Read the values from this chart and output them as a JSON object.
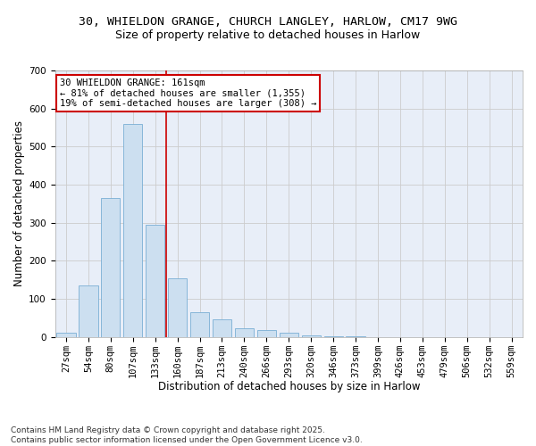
{
  "title_line1": "30, WHIELDON GRANGE, CHURCH LANGLEY, HARLOW, CM17 9WG",
  "title_line2": "Size of property relative to detached houses in Harlow",
  "xlabel": "Distribution of detached houses by size in Harlow",
  "ylabel": "Number of detached properties",
  "categories": [
    "27sqm",
    "54sqm",
    "80sqm",
    "107sqm",
    "133sqm",
    "160sqm",
    "187sqm",
    "213sqm",
    "240sqm",
    "266sqm",
    "293sqm",
    "320sqm",
    "346sqm",
    "373sqm",
    "399sqm",
    "426sqm",
    "453sqm",
    "479sqm",
    "506sqm",
    "532sqm",
    "559sqm"
  ],
  "values": [
    10,
    135,
    365,
    560,
    295,
    155,
    65,
    47,
    22,
    17,
    10,
    5,
    2,
    1,
    0,
    0,
    0,
    0,
    0,
    0,
    0
  ],
  "bar_color": "#ccdff0",
  "bar_edge_color": "#7aafd4",
  "grid_color": "#cccccc",
  "bg_color": "#e8eef8",
  "vline_color": "#cc0000",
  "annotation_text": "30 WHIELDON GRANGE: 161sqm\n← 81% of detached houses are smaller (1,355)\n19% of semi-detached houses are larger (308) →",
  "annotation_box_color": "#cc0000",
  "ylim": [
    0,
    700
  ],
  "yticks": [
    0,
    100,
    200,
    300,
    400,
    500,
    600,
    700
  ],
  "footnote": "Contains HM Land Registry data © Crown copyright and database right 2025.\nContains public sector information licensed under the Open Government Licence v3.0.",
  "title_fontsize": 9.5,
  "subtitle_fontsize": 9,
  "axis_label_fontsize": 8.5,
  "tick_fontsize": 7.5,
  "annotation_fontsize": 7.5,
  "footnote_fontsize": 6.5
}
